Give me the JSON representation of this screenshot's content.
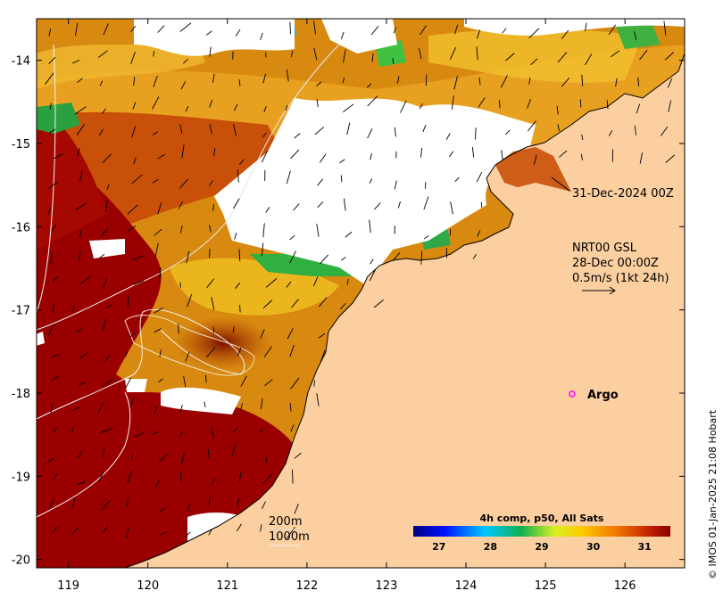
{
  "map": {
    "lon_ticks": [
      "119",
      "120",
      "121",
      "122",
      "123",
      "124",
      "125",
      "126"
    ],
    "lat_ticks": [
      "-14",
      "-15",
      "-16",
      "-17",
      "-18",
      "-19",
      "-20"
    ],
    "lon_range": [
      118.6,
      126.75
    ],
    "lat_range": [
      -20.1,
      -13.5
    ]
  },
  "annotations": {
    "time_label": "31-Dec-2024 00Z",
    "current_source": "NRT00 GSL",
    "current_time": "28-Dec 00:00Z",
    "current_scale": "0.5m/s (1kt 24h)",
    "argo_label": "Argo",
    "isobath_200": "200m",
    "isobath_1000": "1000m"
  },
  "colorbar": {
    "title": "4h comp, p50, All Sats",
    "ticks": [
      "27",
      "28",
      "29",
      "30",
      "31"
    ],
    "range": [
      26.5,
      31.5
    ]
  },
  "credit": "© IMOS 01-Jan-2025 21:08 Hobart",
  "colors": {
    "land": "#fbcf9f",
    "no_data": "#ffffff",
    "hot": "#9a0000",
    "argo": "#ff00ff"
  }
}
